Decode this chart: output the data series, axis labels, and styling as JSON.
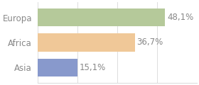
{
  "categories": [
    "Europa",
    "Africa",
    "Asia"
  ],
  "values": [
    48.1,
    36.7,
    15.1
  ],
  "labels": [
    "48,1%",
    "36,7%",
    "15,1%"
  ],
  "bar_colors": [
    "#b5c99a",
    "#f0c898",
    "#8899cc"
  ],
  "background_color": "#ffffff",
  "grid_color": "#dddddd",
  "text_color": "#888888",
  "xlim": [
    0,
    60
  ],
  "bar_height": 0.72,
  "label_fontsize": 8.5,
  "tick_fontsize": 8.5
}
